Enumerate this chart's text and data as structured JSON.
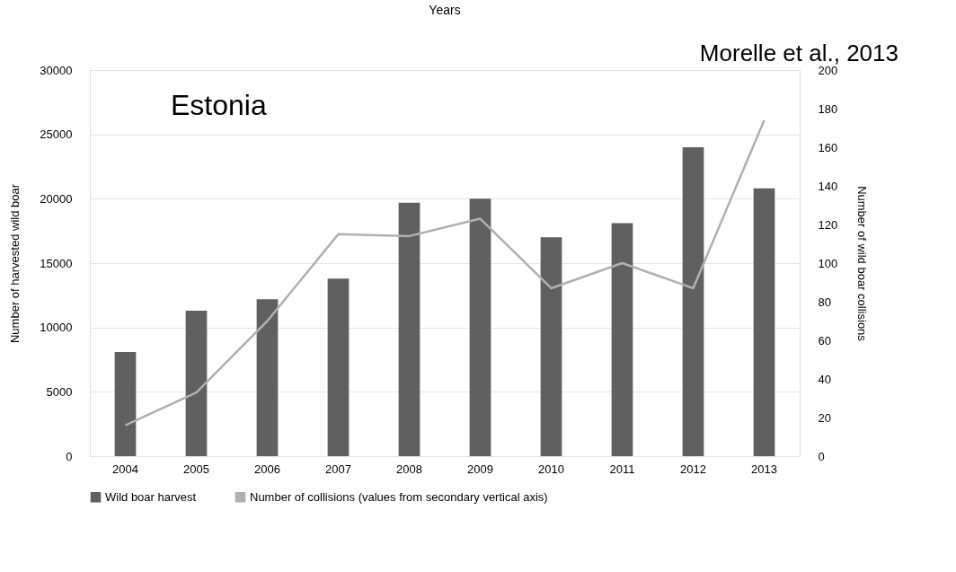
{
  "chart_data": {
    "type": "bar",
    "title": "Years",
    "ylabel": "Number  of harvested wild boar",
    "y2label": "Number  of wild boar collisions",
    "categories": [
      "2004",
      "2005",
      "2006",
      "2007",
      "2008",
      "2009",
      "2010",
      "2011",
      "2012",
      "2013"
    ],
    "series": [
      {
        "name": "Wild boar harvest",
        "color": "#606060",
        "values": [
          8100,
          11300,
          12200,
          13800,
          19700,
          20000,
          17000,
          18100,
          24000,
          20800
        ]
      },
      {
        "name": "Number of collisions (values from secondary vertical axis)",
        "type": "line",
        "axis": "y2",
        "color": "#b0b0b0",
        "values": [
          16,
          33,
          70,
          115,
          114,
          123,
          87,
          100,
          87,
          174
        ]
      }
    ],
    "ylim": [
      0,
      30000
    ],
    "yticks": [
      0,
      5000,
      10000,
      15000,
      20000,
      25000,
      30000
    ],
    "y2lim": [
      0,
      200
    ],
    "y2ticks": [
      0,
      20,
      40,
      60,
      80,
      100,
      120,
      140,
      160,
      180,
      200
    ],
    "grid": "y",
    "legend": "bottom",
    "marker": "none",
    "line_style": "solid",
    "annotations": [
      "Estonia",
      "Morelle et al., 2013"
    ]
  }
}
